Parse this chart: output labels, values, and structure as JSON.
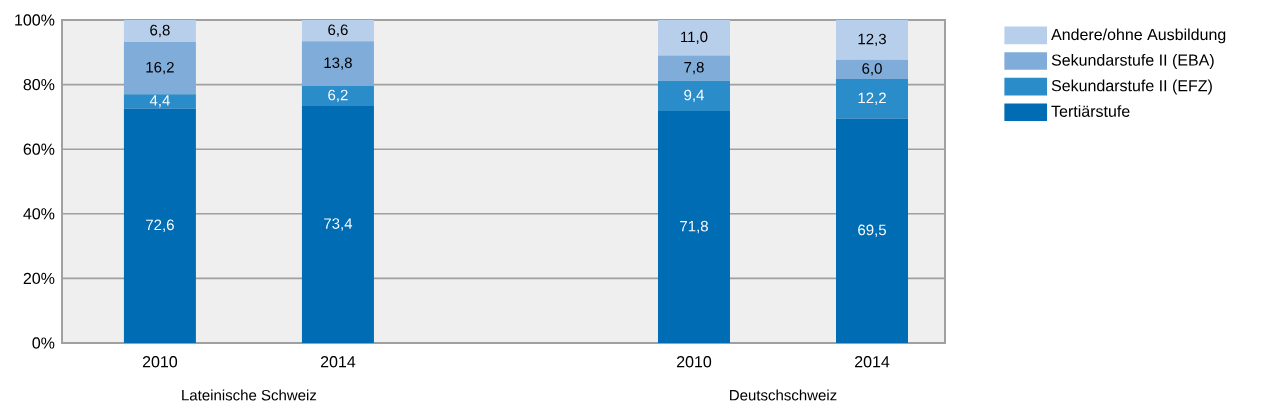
{
  "chart_data": {
    "type": "bar",
    "stacked": true,
    "categories": [
      "2010",
      "2014",
      null,
      "2010",
      "2014"
    ],
    "series": [
      {
        "name": "Tertiärstufe",
        "color": "#006cb3",
        "values": [
          72.6,
          73.4,
          null,
          71.8,
          69.5
        ],
        "value_labels": [
          "72,6",
          "73,4",
          null,
          "71,8",
          "69,5"
        ]
      },
      {
        "name": "Sekundarstufe II (EFZ)",
        "color": "#2b8cca",
        "values": [
          4.4,
          6.2,
          null,
          9.4,
          12.2
        ],
        "value_labels": [
          "4,4",
          "6,2",
          null,
          "9,4",
          "12,2"
        ]
      },
      {
        "name": "Sekundarstufe II (EBA)",
        "color": "#80acd9",
        "values": [
          16.2,
          13.8,
          null,
          7.8,
          6.0
        ],
        "value_labels": [
          "16,2",
          "13,8",
          null,
          "7,8",
          "6,0"
        ]
      },
      {
        "name": "Andere/ohne Ausbildung",
        "color": "#b7cfeb",
        "values": [
          6.8,
          6.6,
          null,
          11.0,
          12.3
        ],
        "value_labels": [
          "6,8",
          "6,6",
          null,
          "11,0",
          "12,3"
        ]
      }
    ],
    "ylim": [
      0,
      100
    ],
    "yticks": [
      {
        "value": 0,
        "label": "0%"
      },
      {
        "value": 20,
        "label": "20%"
      },
      {
        "value": 40,
        "label": "40%"
      },
      {
        "value": 60,
        "label": "60%"
      },
      {
        "value": 80,
        "label": "80%"
      },
      {
        "value": 100,
        "label": "100%"
      }
    ],
    "grid": "y",
    "legend": "top right",
    "annotations": [
      "Lateinische Schweiz",
      "Deutschschweiz"
    ]
  }
}
